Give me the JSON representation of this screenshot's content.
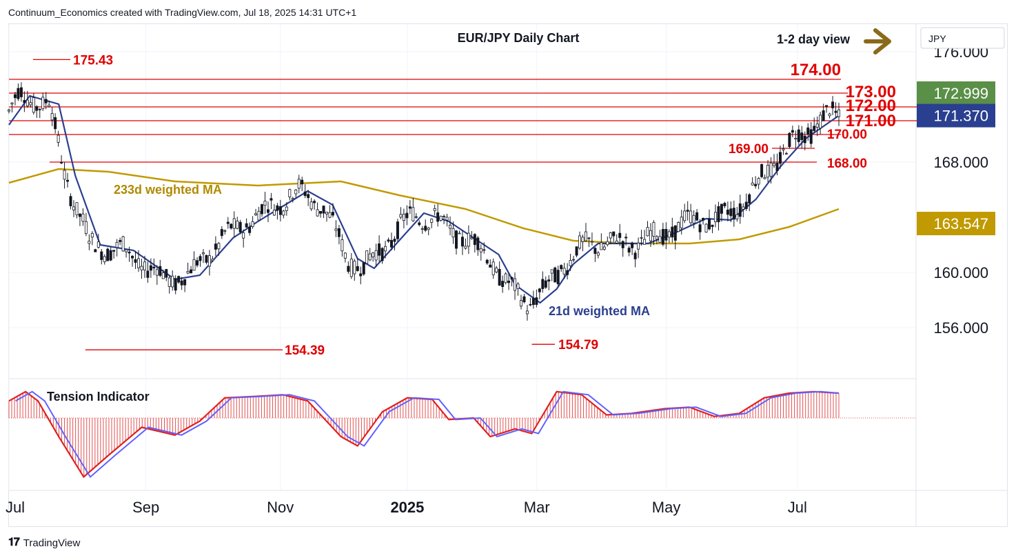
{
  "header": {
    "credit": "Continuum_Economics created with TradingView.com, Jul 18, 2025 14:31 UTC+1"
  },
  "footer": {
    "logo_text": "TradingView",
    "logo_icon": "tradingview-logo-icon"
  },
  "chart_data": {
    "type": "candlestick",
    "title": "EUR/JPY Daily Chart",
    "view_text": "1-2 day view",
    "view_arrow": "arrow-right-icon",
    "currency": "JPY",
    "colors": {
      "levels": "#e00000",
      "ma_fast": "#2a3f8f",
      "ma_slow": "#c09a00",
      "candles": "#131722",
      "tension_bars": "#e05050",
      "tension_line_red": "#e02020",
      "tension_line_blue": "#6060ff"
    },
    "ylim": [
      152.5,
      177.2
    ],
    "y_ticks": [
      "176.000",
      "168.000",
      "160.000",
      "156.000"
    ],
    "x_ticks": [
      "Jul",
      "Sep",
      "Nov",
      "2025",
      "Mar",
      "May",
      "Jul"
    ],
    "price_badges": [
      {
        "label": "172.999",
        "value": 173.0,
        "bg": "#5a8f47"
      },
      {
        "label": "171.370",
        "value": 171.37,
        "bg": "#2a3f8f"
      },
      {
        "label": "163.547",
        "value": 163.547,
        "bg": "#c09a00"
      }
    ],
    "levels": [
      {
        "label": "174.00",
        "value": 174.0
      },
      {
        "label": "173.00",
        "value": 173.0
      },
      {
        "label": "172.00",
        "value": 172.0
      },
      {
        "label": "171.00",
        "value": 171.0
      },
      {
        "label": "170.00",
        "value": 170.0
      },
      {
        "label": "169.00",
        "value": 169.0
      },
      {
        "label": "168.00",
        "value": 168.0
      }
    ],
    "extremes": [
      {
        "label": "175.43",
        "value": 175.43
      },
      {
        "label": "154.39",
        "value": 154.39
      },
      {
        "label": "154.79",
        "value": 154.79
      }
    ],
    "ma_labels": {
      "slow": "233d weighted MA",
      "fast": "21d weighted MA"
    },
    "ma_slow": [
      [
        0,
        166.5
      ],
      [
        0.06,
        167.5
      ],
      [
        0.12,
        167.3
      ],
      [
        0.2,
        166.6
      ],
      [
        0.3,
        166.3
      ],
      [
        0.4,
        166.6
      ],
      [
        0.47,
        165.6
      ],
      [
        0.55,
        164.6
      ],
      [
        0.62,
        163.2
      ],
      [
        0.68,
        162.3
      ],
      [
        0.75,
        162.1
      ],
      [
        0.82,
        162.1
      ],
      [
        0.88,
        162.4
      ],
      [
        0.94,
        163.3
      ],
      [
        1.0,
        164.6
      ]
    ],
    "ma_fast": [
      [
        0,
        170.7
      ],
      [
        0.025,
        172.8
      ],
      [
        0.06,
        172.2
      ],
      [
        0.08,
        167.0
      ],
      [
        0.11,
        162.0
      ],
      [
        0.15,
        161.6
      ],
      [
        0.2,
        159.5
      ],
      [
        0.23,
        159.8
      ],
      [
        0.27,
        162.5
      ],
      [
        0.3,
        163.7
      ],
      [
        0.33,
        164.8
      ],
      [
        0.36,
        165.9
      ],
      [
        0.39,
        164.9
      ],
      [
        0.42,
        161.0
      ],
      [
        0.44,
        160.3
      ],
      [
        0.47,
        162.3
      ],
      [
        0.5,
        164.3
      ],
      [
        0.53,
        163.7
      ],
      [
        0.56,
        162.5
      ],
      [
        0.59,
        161.3
      ],
      [
        0.61,
        159.1
      ],
      [
        0.64,
        157.8
      ],
      [
        0.66,
        158.8
      ],
      [
        0.68,
        160.6
      ],
      [
        0.71,
        162.1
      ],
      [
        0.74,
        162.1
      ],
      [
        0.77,
        162.1
      ],
      [
        0.8,
        162.8
      ],
      [
        0.84,
        163.9
      ],
      [
        0.87,
        163.8
      ],
      [
        0.9,
        165.3
      ],
      [
        0.93,
        167.7
      ],
      [
        0.96,
        169.7
      ],
      [
        1.0,
        171.37
      ]
    ],
    "tension_label": "Tension Indicator",
    "tension": [
      [
        0,
        0.55
      ],
      [
        0.02,
        0.85
      ],
      [
        0.035,
        0.55
      ],
      [
        0.06,
        -0.6
      ],
      [
        0.09,
        -1.9
      ],
      [
        0.12,
        -1.2
      ],
      [
        0.16,
        -0.3
      ],
      [
        0.2,
        -0.55
      ],
      [
        0.23,
        -0.1
      ],
      [
        0.26,
        0.65
      ],
      [
        0.3,
        0.7
      ],
      [
        0.33,
        0.75
      ],
      [
        0.36,
        0.55
      ],
      [
        0.4,
        -0.6
      ],
      [
        0.42,
        -0.9
      ],
      [
        0.45,
        0.2
      ],
      [
        0.48,
        0.65
      ],
      [
        0.51,
        0.6
      ],
      [
        0.53,
        -0.05
      ],
      [
        0.56,
        0.0
      ],
      [
        0.58,
        -0.6
      ],
      [
        0.61,
        -0.35
      ],
      [
        0.63,
        -0.5
      ],
      [
        0.66,
        0.85
      ],
      [
        0.69,
        0.75
      ],
      [
        0.72,
        0.1
      ],
      [
        0.75,
        0.15
      ],
      [
        0.79,
        0.3
      ],
      [
        0.82,
        0.35
      ],
      [
        0.85,
        0.05
      ],
      [
        0.88,
        0.15
      ],
      [
        0.91,
        0.65
      ],
      [
        0.94,
        0.8
      ],
      [
        0.97,
        0.85
      ],
      [
        1.0,
        0.8
      ]
    ]
  }
}
